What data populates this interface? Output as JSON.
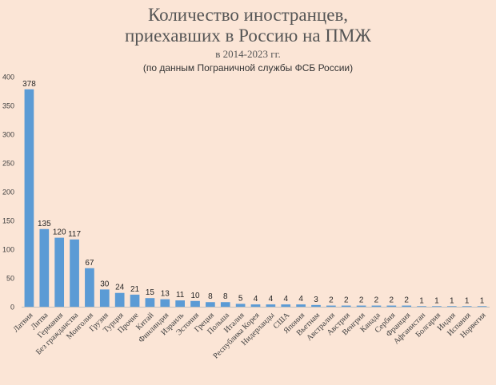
{
  "chart_data": {
    "type": "bar",
    "title_line1": "Количество иностранцев,",
    "title_line2": "приехавших в Россию на ПМЖ",
    "subtitle": "в 2014-2023 гг.",
    "source_note": "(по данным Пограничной службы ФСБ России)",
    "xlabel": "",
    "ylabel": "",
    "ylim": [
      0,
      400
    ],
    "yticks": [
      0,
      50,
      100,
      150,
      200,
      250,
      300,
      350,
      400
    ],
    "grid": false,
    "legend": "none",
    "bar_color": "#5b9bd5",
    "categories": [
      "Латвия",
      "Литва",
      "Германия",
      "Без гражданства",
      "Монголия",
      "Грузия",
      "Турция",
      "Прочие",
      "Китай",
      "Финляндия",
      "Израиль",
      "Эстония",
      "Греция",
      "Польша",
      "Италия",
      "Республика Корея",
      "Нидерланды",
      "США",
      "Япония",
      "Вьетнам",
      "Австралия",
      "Австрия",
      "Венгрия",
      "Канада",
      "Сербия",
      "Франция",
      "Афганистан",
      "Болгария",
      "Индия",
      "Испания",
      "Норвегия"
    ],
    "values": [
      378,
      135,
      120,
      117,
      67,
      30,
      24,
      21,
      15,
      13,
      11,
      10,
      8,
      8,
      5,
      4,
      4,
      4,
      4,
      3,
      2,
      2,
      2,
      2,
      2,
      2,
      1,
      1,
      1,
      1,
      1
    ]
  }
}
